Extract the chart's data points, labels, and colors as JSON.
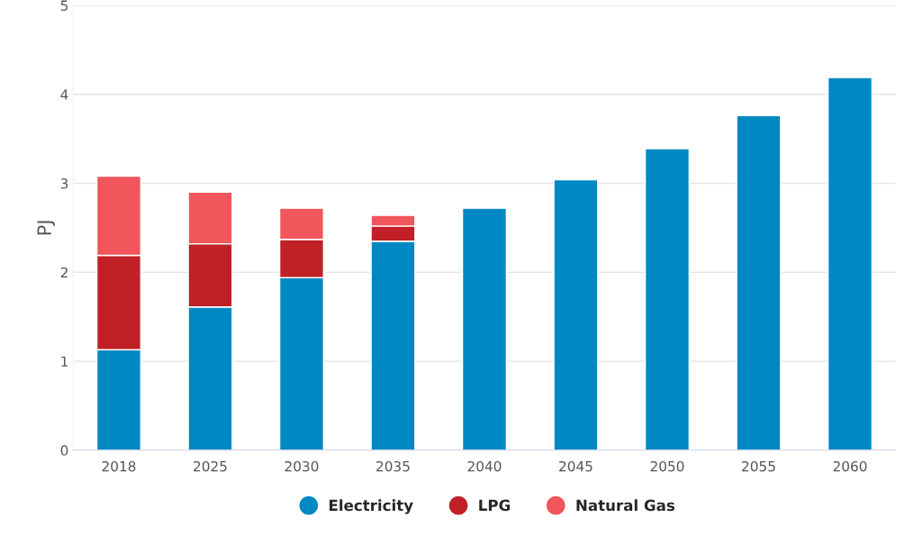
{
  "chart_data": {
    "type": "bar",
    "stacked": true,
    "ylabel": "PJ",
    "categories": [
      "2018",
      "2025",
      "2030",
      "2035",
      "2040",
      "2045",
      "2050",
      "2055",
      "2060"
    ],
    "series": [
      {
        "name": "Electricity",
        "color": "#0088c2",
        "values": [
          1.13,
          1.61,
          1.94,
          2.35,
          2.72,
          3.04,
          3.39,
          3.76,
          4.19
        ]
      },
      {
        "name": "LPG",
        "color": "#c02026",
        "values": [
          1.06,
          0.71,
          0.43,
          0.17,
          null,
          null,
          null,
          null,
          null
        ]
      },
      {
        "name": "Natural Gas",
        "color": "#f0565b",
        "values": [
          0.89,
          0.58,
          0.35,
          0.12,
          null,
          null,
          null,
          null,
          null
        ]
      }
    ],
    "ylim": [
      0,
      5
    ],
    "yticks": [
      0,
      1,
      2,
      3,
      4,
      5
    ],
    "grid": "y",
    "legend": "bottom"
  }
}
